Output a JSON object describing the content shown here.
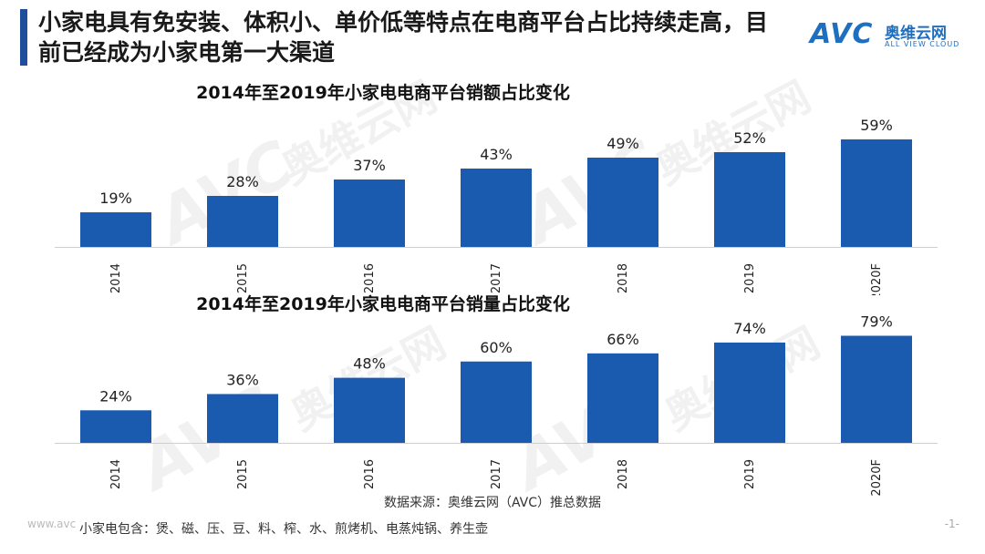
{
  "header": {
    "title": "小家电具有免安装、体积小、单价低等特点在电商平台占比持续走高，目前已经成为小家电第一大渠道",
    "logo_text": "AVC",
    "logo_cn": "奥维云网",
    "logo_en": "ALL VIEW CLOUD"
  },
  "watermark": {
    "text": "AVC",
    "cn": "奥维云网",
    "en": "ALL VIEW CLOUD"
  },
  "chart_data": [
    {
      "type": "bar",
      "title": "2014年至2019年小家电电商平台销额占比变化",
      "categories": [
        "2014",
        "2015",
        "2016",
        "2017",
        "2018",
        "2019",
        "2020F"
      ],
      "values": [
        19,
        28,
        37,
        43,
        49,
        52,
        59
      ],
      "labels": [
        "19%",
        "28%",
        "37%",
        "43%",
        "49%",
        "52%",
        "59%"
      ],
      "ylim": [
        0,
        60
      ],
      "color": "#1a5bb0"
    },
    {
      "type": "bar",
      "title": "2014年至2019年小家电电商平台销量占比变化",
      "categories": [
        "2014",
        "2015",
        "2016",
        "2017",
        "2018",
        "2019",
        "2020F"
      ],
      "values": [
        24,
        36,
        48,
        60,
        66,
        74,
        79
      ],
      "labels": [
        "24%",
        "36%",
        "48%",
        "60%",
        "66%",
        "74%",
        "79%"
      ],
      "ylim": [
        0,
        80
      ],
      "color": "#1a5bb0"
    }
  ],
  "footer": {
    "source": "数据来源：奥维云网（AVC）推总数据",
    "note": "小家电包含：煲、磁、压、豆、料、榨、水、煎烤机、电蒸炖锅、养生壶",
    "url": "www.avc",
    "page": "-1-"
  }
}
